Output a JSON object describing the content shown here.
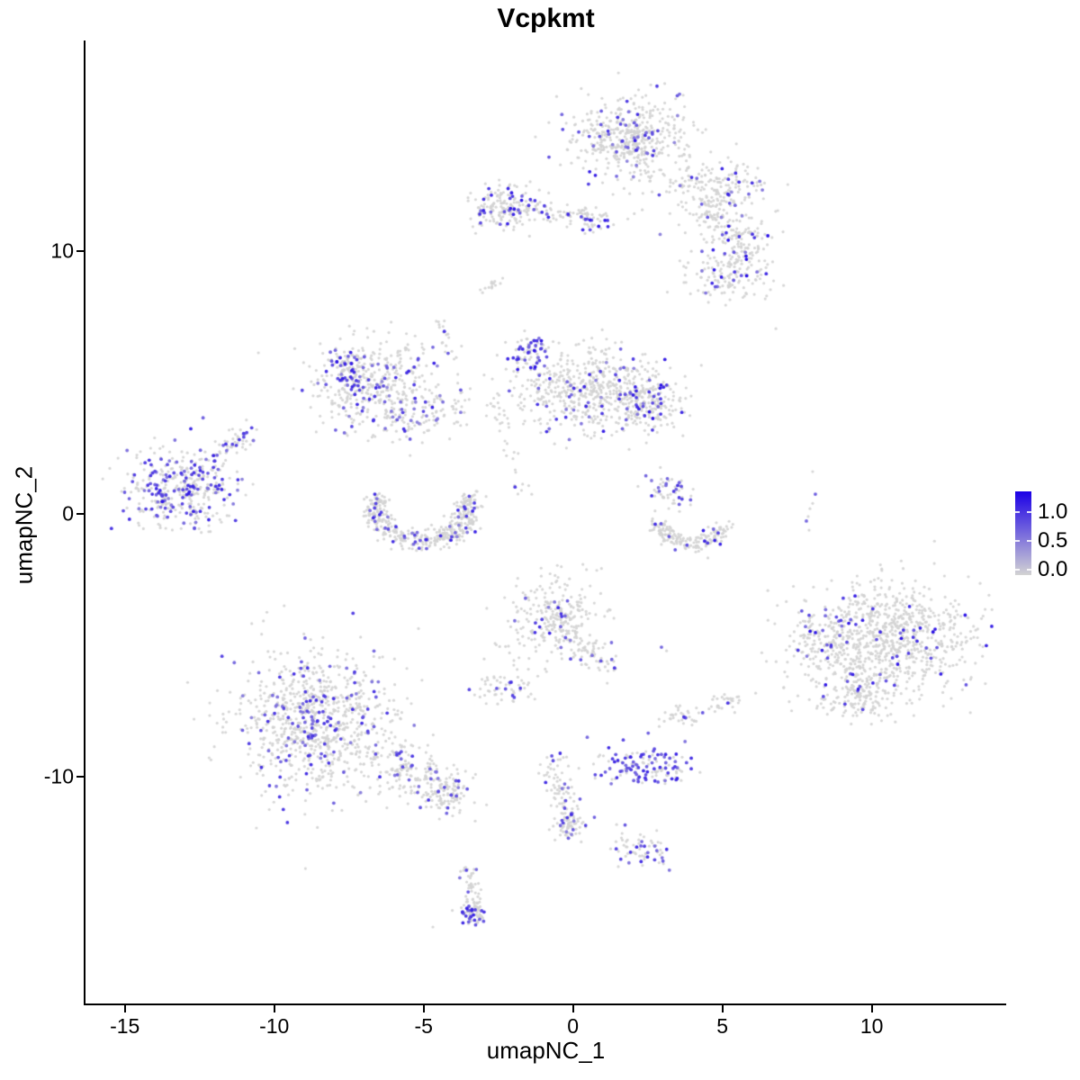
{
  "title": "Vcpkmt",
  "axes": {
    "x_label": "umapNC_1",
    "y_label": "umapNC_2",
    "x_ticks": [
      {
        "label": "-15",
        "value": -15
      },
      {
        "label": "-10",
        "value": -10
      },
      {
        "label": "-5",
        "value": -5
      },
      {
        "label": "0",
        "value": 0
      },
      {
        "label": "5",
        "value": 5
      },
      {
        "label": "10",
        "value": 10
      }
    ],
    "y_ticks": [
      {
        "label": "-10",
        "value": -10
      },
      {
        "label": "0",
        "value": 0
      },
      {
        "label": "10",
        "value": 10
      }
    ]
  },
  "legend": {
    "entries": [
      {
        "label": "1.0",
        "value": 1.0
      },
      {
        "label": "0.5",
        "value": 0.5
      },
      {
        "label": "0.0",
        "value": 0.0
      }
    ],
    "color_low": "#d3d3d3",
    "color_high": "#1b00e6"
  },
  "chart_data": {
    "type": "scatter",
    "title": "Vcpkmt",
    "xlabel": "umapNC_1",
    "ylabel": "umapNC_2",
    "x_range": [
      -16.3,
      14.5
    ],
    "y_range": [
      -18.7,
      18.0
    ],
    "grid": false,
    "legend_position": "right",
    "point_color_scale": {
      "low": "#d3d3d3",
      "high": "#1b00e6",
      "value_ticks": [
        0.0,
        0.5,
        1.0
      ]
    },
    "point_value_gray": 0,
    "clusters": [
      {
        "id": "top-main",
        "type": "gauss",
        "cx": 1.9,
        "cy": 14.3,
        "sx": 0.95,
        "sy": 0.75,
        "n": 480,
        "frac": 0.11,
        "t": [
          0.35,
          0.95
        ]
      },
      {
        "id": "top-arm",
        "type": "gauss",
        "cx": 4.7,
        "cy": 12.6,
        "sx": 1.0,
        "sy": 0.42,
        "n": 150,
        "frac": 0.09,
        "t": [
          0.35,
          0.9
        ]
      },
      {
        "id": "top-right-a",
        "type": "gauss",
        "cx": 4.62,
        "cy": 11.5,
        "sx": 0.5,
        "sy": 0.42,
        "n": 90,
        "frac": 0.12,
        "t": [
          0.35,
          0.9
        ]
      },
      {
        "id": "top-right-b",
        "type": "gauss",
        "cx": 5.67,
        "cy": 10.48,
        "sx": 0.55,
        "sy": 0.5,
        "n": 110,
        "frac": 0.1,
        "t": [
          0.4,
          1.0
        ]
      },
      {
        "id": "top-right-c",
        "type": "gauss",
        "cx": 5.22,
        "cy": 9.1,
        "sx": 0.75,
        "sy": 0.55,
        "n": 150,
        "frac": 0.12,
        "t": [
          0.4,
          1.0
        ]
      },
      {
        "id": "upper-left-dense",
        "type": "gauss",
        "cx": -2.25,
        "cy": 11.68,
        "sx": 0.6,
        "sy": 0.42,
        "n": 170,
        "frac": 0.16,
        "t": [
          0.5,
          1.0
        ]
      },
      {
        "id": "upper-left-tail",
        "type": "gauss",
        "cx": -0.35,
        "cy": 11.4,
        "sx": 0.85,
        "sy": 0.22,
        "n": 70,
        "frac": 0.08,
        "t": [
          0.4,
          0.9
        ]
      },
      {
        "id": "upper-left-knot",
        "type": "gauss",
        "cx": 0.7,
        "cy": 11.1,
        "sx": 0.28,
        "sy": 0.2,
        "n": 30,
        "frac": 0.3,
        "t": [
          0.6,
          1.0
        ]
      },
      {
        "id": "small-slash",
        "type": "line",
        "x1": -2.95,
        "y1": 8.55,
        "x2": -2.45,
        "y2": 9.0,
        "w": 0.09,
        "n": 14,
        "frac": 0,
        "t": [
          0.4,
          0.8
        ]
      },
      {
        "id": "strand-a",
        "type": "line",
        "x1": -4.48,
        "y1": 7.4,
        "x2": -3.67,
        "y2": 4.32,
        "w": 0.12,
        "n": 26,
        "frac": 0.04,
        "t": [
          0.4,
          0.8
        ]
      },
      {
        "id": "strand-b",
        "type": "line",
        "x1": -2.76,
        "y1": 4.66,
        "x2": -1.56,
        "y2": 0.72,
        "w": 0.15,
        "n": 30,
        "frac": 0.15,
        "t": [
          0.4,
          0.8
        ]
      },
      {
        "id": "mid-left-main",
        "type": "gauss",
        "cx": -6.7,
        "cy": 4.9,
        "sx": 1.0,
        "sy": 0.85,
        "n": 430,
        "frac": 0.12,
        "t": [
          0.35,
          0.9
        ]
      },
      {
        "id": "mid-left-patch",
        "type": "gauss",
        "cx": -7.55,
        "cy": 5.5,
        "sx": 0.32,
        "sy": 0.5,
        "n": 55,
        "frac": 0.6,
        "t": [
          0.45,
          0.9
        ]
      },
      {
        "id": "mid-left-tail",
        "type": "gauss",
        "cx": -4.95,
        "cy": 3.7,
        "sx": 0.8,
        "sy": 0.4,
        "n": 90,
        "frac": 0.12,
        "t": [
          0.35,
          0.85
        ]
      },
      {
        "id": "mid-knot",
        "type": "gauss",
        "cx": -1.45,
        "cy": 6.1,
        "sx": 0.3,
        "sy": 0.35,
        "n": 65,
        "frac": 0.5,
        "t": [
          0.45,
          0.95
        ]
      },
      {
        "id": "mid-main",
        "type": "gauss",
        "cx": 0.5,
        "cy": 4.7,
        "sx": 1.3,
        "sy": 0.85,
        "n": 540,
        "frac": 0.09,
        "t": [
          0.35,
          0.95
        ]
      },
      {
        "id": "mid-wing",
        "type": "gauss",
        "cx": 2.45,
        "cy": 4.2,
        "sx": 0.6,
        "sy": 0.55,
        "n": 190,
        "frac": 0.13,
        "t": [
          0.4,
          1.0
        ]
      },
      {
        "id": "far-left-main",
        "type": "gauss",
        "cx": -13.1,
        "cy": 1.0,
        "sx": 1.0,
        "sy": 0.8,
        "n": 400,
        "frac": 0.32,
        "t": [
          0.4,
          0.9
        ]
      },
      {
        "id": "far-left-tail",
        "type": "line",
        "x1": -12.0,
        "y1": 2.2,
        "x2": -10.7,
        "y2": 3.2,
        "w": 0.2,
        "n": 45,
        "frac": 0.3,
        "t": [
          0.4,
          0.85
        ]
      },
      {
        "id": "crescent-left",
        "type": "arc",
        "cx": -5.05,
        "cy": 0.15,
        "rx": 1.6,
        "ry": 1.15,
        "a1": 150,
        "a2": 390,
        "w": 0.2,
        "n": 430,
        "frac": 0.12,
        "t": [
          0.4,
          0.9
        ]
      },
      {
        "id": "right-mid-top",
        "type": "gauss",
        "cx": 3.3,
        "cy": 0.9,
        "sx": 0.4,
        "sy": 0.33,
        "n": 55,
        "frac": 0.22,
        "t": [
          0.45,
          0.85
        ]
      },
      {
        "id": "right-mid-crescent",
        "type": "arc",
        "cx": 3.95,
        "cy": -0.35,
        "rx": 1.05,
        "ry": 0.8,
        "a1": 170,
        "a2": 360,
        "w": 0.18,
        "n": 170,
        "frac": 0.04,
        "t": [
          0.5,
          1.0
        ]
      },
      {
        "id": "right-big-main",
        "type": "gauss",
        "cx": 10.6,
        "cy": -4.7,
        "sx": 1.35,
        "sy": 1.1,
        "n": 760,
        "frac": 0.05,
        "t": [
          0.5,
          1.0
        ]
      },
      {
        "id": "right-big-west",
        "type": "gauss",
        "cx": 8.35,
        "cy": -4.9,
        "sx": 0.6,
        "sy": 0.8,
        "n": 160,
        "frac": 0.08,
        "t": [
          0.45,
          0.95
        ]
      },
      {
        "id": "right-big-south",
        "type": "gauss",
        "cx": 9.7,
        "cy": -6.8,
        "sx": 0.85,
        "sy": 0.5,
        "n": 170,
        "frac": 0.06,
        "t": [
          0.5,
          1.0
        ]
      },
      {
        "id": "center-bottom",
        "type": "gauss",
        "cx": -0.6,
        "cy": -4.0,
        "sx": 0.75,
        "sy": 0.8,
        "n": 270,
        "frac": 0.06,
        "t": [
          0.4,
          0.9
        ]
      },
      {
        "id": "center-bottom-arm",
        "type": "line",
        "x1": 0.1,
        "y1": -4.8,
        "x2": 1.2,
        "y2": -5.75,
        "w": 0.3,
        "n": 60,
        "frac": 0.1,
        "t": [
          0.4,
          0.85
        ]
      },
      {
        "id": "center-bottom-west",
        "type": "gauss",
        "cx": -2.16,
        "cy": -6.64,
        "sx": 0.45,
        "sy": 0.35,
        "n": 55,
        "frac": 0.07,
        "t": [
          0.4,
          0.8
        ]
      },
      {
        "id": "small-right-a",
        "type": "gauss",
        "cx": 3.71,
        "cy": -7.67,
        "sx": 0.35,
        "sy": 0.28,
        "n": 35,
        "frac": 0.2,
        "t": [
          0.45,
          0.8
        ]
      },
      {
        "id": "small-right-b",
        "type": "gauss",
        "cx": 5.07,
        "cy": -7.16,
        "sx": 0.3,
        "sy": 0.25,
        "n": 28,
        "frac": 0.08,
        "t": [
          0.4,
          0.8
        ]
      },
      {
        "id": "bottom-left-main",
        "type": "gauss",
        "cx": -8.6,
        "cy": -7.9,
        "sx": 1.35,
        "sy": 1.35,
        "n": 880,
        "frac": 0.15,
        "t": [
          0.4,
          0.85
        ]
      },
      {
        "id": "bottom-left-arm",
        "type": "line",
        "x1": -6.6,
        "y1": -9.2,
        "x2": -4.0,
        "y2": -10.9,
        "w": 0.5,
        "n": 210,
        "frac": 0.12,
        "t": [
          0.4,
          0.85
        ]
      },
      {
        "id": "bottom-left-arm-end",
        "type": "gauss",
        "cx": -4.2,
        "cy": -10.6,
        "sx": 0.35,
        "sy": 0.3,
        "n": 45,
        "frac": 0.15,
        "t": [
          0.4,
          0.85
        ]
      },
      {
        "id": "bottom-strand",
        "type": "line",
        "x1": -0.74,
        "y1": -9.14,
        "x2": -0.05,
        "y2": -12.12,
        "w": 0.22,
        "n": 90,
        "frac": 0.1,
        "t": [
          0.4,
          0.85
        ]
      },
      {
        "id": "bottom-strand-knot",
        "type": "gauss",
        "cx": -0.15,
        "cy": -11.9,
        "sx": 0.3,
        "sy": 0.3,
        "n": 55,
        "frac": 0.2,
        "t": [
          0.4,
          0.85
        ]
      },
      {
        "id": "purple-dense",
        "type": "gauss",
        "cx": 2.4,
        "cy": -9.6,
        "sx": 0.8,
        "sy": 0.4,
        "n": 135,
        "frac": 0.6,
        "t": [
          0.45,
          0.9
        ]
      },
      {
        "id": "small-bottom",
        "type": "gauss",
        "cx": 2.4,
        "cy": -12.75,
        "sx": 0.55,
        "sy": 0.35,
        "n": 65,
        "frac": 0.28,
        "t": [
          0.45,
          0.85
        ]
      },
      {
        "id": "tail-strand",
        "type": "line",
        "x1": -3.58,
        "y1": -13.49,
        "x2": -3.21,
        "y2": -15.38,
        "w": 0.15,
        "n": 60,
        "frac": 0.06,
        "t": [
          0.4,
          0.8
        ]
      },
      {
        "id": "tail-blob",
        "type": "gauss",
        "cx": -3.39,
        "cy": -15.1,
        "sx": 0.22,
        "sy": 0.25,
        "n": 50,
        "frac": 0.5,
        "t": [
          0.5,
          0.9
        ]
      }
    ],
    "singles": [
      [
        6.79,
        7.05,
        0
      ],
      [
        -10.53,
        6.13,
        0
      ],
      [
        8.02,
        1.61,
        0
      ],
      [
        8.11,
        0.75,
        0.6
      ],
      [
        8.02,
        0.4,
        0
      ],
      [
        7.93,
        0.2,
        0
      ],
      [
        7.87,
        -0.1,
        0
      ],
      [
        7.81,
        -0.27,
        0.55
      ],
      [
        7.9,
        -0.62,
        0
      ],
      [
        2.96,
        -5.07,
        0.55
      ],
      [
        3.13,
        -5.21,
        0
      ],
      [
        -0.71,
        -9.21,
        0.65
      ],
      [
        -3.57,
        -13.56,
        0.7
      ],
      [
        -4.69,
        -15.72,
        0
      ],
      [
        0.33,
        -1.92,
        0
      ],
      [
        0.45,
        -2.12,
        0
      ],
      [
        -1.98,
        -5.58,
        0
      ],
      [
        -1.87,
        -5.92,
        0
      ],
      [
        1.62,
        -12.33,
        0
      ],
      [
        1.78,
        -12.47,
        0
      ],
      [
        -2.61,
        -4.93,
        0
      ]
    ]
  }
}
